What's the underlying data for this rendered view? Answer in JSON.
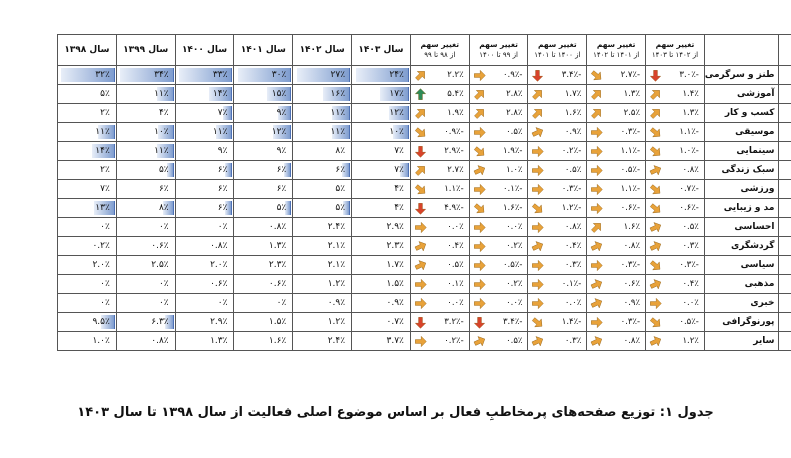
{
  "table": {
    "value_headers": [
      "سال ۱۳۹۸",
      "سال ۱۳۹۹",
      "سال ۱۴۰۰",
      "سال ۱۴۰۱",
      "سال ۱۴۰۲",
      "سال ۱۴۰۳"
    ],
    "change_headers": [
      {
        "l1": "تغییر سهم",
        "l2": "از ۹۸ تا ۹۹"
      },
      {
        "l1": "تغییر سهم",
        "l2": "از ۹۹ تا ۱۴۰۰"
      },
      {
        "l1": "تغییر سهم",
        "l2": "از ۱۴۰۰ تا ۱۴۰۱"
      },
      {
        "l1": "تغییر سهم",
        "l2": "از ۱۴۰۱ تا ۱۴۰۲"
      },
      {
        "l1": "تغییر سهم",
        "l2": "از ۱۴۰۲ تا ۱۴۰۳"
      }
    ],
    "rows": [
      {
        "label": "طنز و سرگرمی",
        "values": [
          "۳۲٪",
          "۳۴٪",
          "۳۳٪",
          "۳۰٪",
          "۲۷٪",
          "۲۴٪"
        ],
        "fills": [
          0.97,
          0.97,
          0.97,
          0.97,
          0.97,
          0.97
        ],
        "changes": [
          {
            "text": "۲.۲٪",
            "dir": "up"
          },
          {
            "text": "-۰.۹٪",
            "dir": "flat"
          },
          {
            "text": "-۳.۴٪",
            "dir": "down"
          },
          {
            "text": "-۲.۷٪",
            "dir": "downslight"
          },
          {
            "text": "-۳.۰٪",
            "dir": "down"
          }
        ]
      },
      {
        "label": "آموزشی",
        "values": [
          "۵٪",
          "۱۱٪",
          "۱۴٪",
          "۱۵٪",
          "۱۶٪",
          "۱۷٪"
        ],
        "fills": [
          0.0,
          0.3,
          0.42,
          0.45,
          0.49,
          0.52
        ],
        "changes": [
          {
            "text": "۵.۴٪",
            "dir": "upstrong"
          },
          {
            "text": "۲.۸٪",
            "dir": "up"
          },
          {
            "text": "۱.۷٪",
            "dir": "up"
          },
          {
            "text": "۱.۳٪",
            "dir": "up"
          },
          {
            "text": "۱.۴٪",
            "dir": "up"
          }
        ]
      },
      {
        "label": "کسب و کار",
        "values": [
          "۲٪",
          "۴٪",
          "۷٪",
          "۹٪",
          "۱۱٪",
          "۱۲٪"
        ],
        "fills": [
          0.0,
          0.0,
          0.18,
          0.25,
          0.32,
          0.36
        ],
        "changes": [
          {
            "text": "۱.۹٪",
            "dir": "up"
          },
          {
            "text": "۲.۸٪",
            "dir": "up"
          },
          {
            "text": "۱.۶٪",
            "dir": "up"
          },
          {
            "text": "۲.۵٪",
            "dir": "up"
          },
          {
            "text": "۱.۳٪",
            "dir": "up"
          }
        ]
      },
      {
        "label": "موسیقی",
        "values": [
          "۱۱٪",
          "۱۰٪",
          "۱۱٪",
          "۱۲٪",
          "۱۱٪",
          "۱۰٪"
        ],
        "fills": [
          0.3,
          0.28,
          0.3,
          0.34,
          0.32,
          0.28
        ],
        "changes": [
          {
            "text": "-۰.۹٪",
            "dir": "downslight"
          },
          {
            "text": "۰.۵٪",
            "dir": "flat"
          },
          {
            "text": "۰.۹٪",
            "dir": "upslight"
          },
          {
            "text": "-۰.۳٪",
            "dir": "flat"
          },
          {
            "text": "-۱.۱٪",
            "dir": "downslight"
          }
        ]
      },
      {
        "label": "سینمایی",
        "values": [
          "۱۴٪",
          "۱۱٪",
          "۹٪",
          "۹٪",
          "۸٪",
          "۷٪"
        ],
        "fills": [
          0.42,
          0.3,
          0.0,
          0.0,
          0.0,
          0.0
        ],
        "changes": [
          {
            "text": "-۲.۹٪",
            "dir": "down"
          },
          {
            "text": "-۱.۹٪",
            "dir": "downslight"
          },
          {
            "text": "-۰.۲٪",
            "dir": "flat"
          },
          {
            "text": "-۱.۱٪",
            "dir": "flat"
          },
          {
            "text": "-۱.۰٪",
            "dir": "downslight"
          }
        ]
      },
      {
        "label": "سبک زندگی",
        "values": [
          "۲٪",
          "۵٪",
          "۶٪",
          "۶٪",
          "۶٪",
          "۷٪"
        ],
        "fills": [
          0.0,
          0.12,
          0.14,
          0.14,
          0.14,
          0.16
        ],
        "changes": [
          {
            "text": "۲.۷٪",
            "dir": "up"
          },
          {
            "text": "۱.۰٪",
            "dir": "upslight"
          },
          {
            "text": "۰.۵٪",
            "dir": "flat"
          },
          {
            "text": "-۰.۵٪",
            "dir": "flat"
          },
          {
            "text": "۰.۸٪",
            "dir": "upslight"
          }
        ]
      },
      {
        "label": "ورزشی",
        "values": [
          "۷٪",
          "۶٪",
          "۶٪",
          "۶٪",
          "۵٪",
          "۴٪"
        ],
        "fills": [
          0.0,
          0.0,
          0.0,
          0.0,
          0.0,
          0.0
        ],
        "changes": [
          {
            "text": "-۱.۱٪",
            "dir": "downslight"
          },
          {
            "text": "-۰.۱٪",
            "dir": "flat"
          },
          {
            "text": "-۰.۳٪",
            "dir": "flat"
          },
          {
            "text": "-۱.۱٪",
            "dir": "flat"
          },
          {
            "text": "-۰.۷٪",
            "dir": "downslight"
          }
        ]
      },
      {
        "label": "مد و زیبایی",
        "values": [
          "۱۳٪",
          "۸٪",
          "۶٪",
          "۵٪",
          "۵٪",
          "۴٪"
        ],
        "fills": [
          0.38,
          0.2,
          0.14,
          0.12,
          0.12,
          0.0
        ],
        "changes": [
          {
            "text": "-۴.۹٪",
            "dir": "down"
          },
          {
            "text": "-۱.۶٪",
            "dir": "downslight"
          },
          {
            "text": "-۱.۲٪",
            "dir": "downslight"
          },
          {
            "text": "-۰.۶٪",
            "dir": "flat"
          },
          {
            "text": "-۰.۶٪",
            "dir": "downslight"
          }
        ]
      },
      {
        "label": "احساسی",
        "values": [
          "۰٪",
          "۰٪",
          "۰٪",
          "۰.۸٪",
          "۲.۴٪",
          "۲.۹٪"
        ],
        "fills": [
          0,
          0,
          0,
          0,
          0,
          0
        ],
        "changes": [
          {
            "text": "۰.۰٪",
            "dir": "flat"
          },
          {
            "text": "۰.۰٪",
            "dir": "flat"
          },
          {
            "text": "۰.۸٪",
            "dir": "flat"
          },
          {
            "text": "۱.۶٪",
            "dir": "up"
          },
          {
            "text": "۰.۵٪",
            "dir": "upslight"
          }
        ]
      },
      {
        "label": "گردشگری",
        "values": [
          "۰.۲٪",
          "۰.۶٪",
          "۰.۸٪",
          "۱.۳٪",
          "۲.۱٪",
          "۲.۳٪"
        ],
        "fills": [
          0,
          0,
          0,
          0,
          0,
          0
        ],
        "changes": [
          {
            "text": "۰.۴٪",
            "dir": "upslight"
          },
          {
            "text": "۰.۲٪",
            "dir": "flat"
          },
          {
            "text": "۰.۴٪",
            "dir": "upslight"
          },
          {
            "text": "۰.۸٪",
            "dir": "upslight"
          },
          {
            "text": "۰.۳٪",
            "dir": "upslight"
          }
        ]
      },
      {
        "label": "سیاسی",
        "values": [
          "۲.۰٪",
          "۲.۵٪",
          "۲.۰٪",
          "۲.۳٪",
          "۲.۱٪",
          "۱.۷٪"
        ],
        "fills": [
          0,
          0,
          0,
          0,
          0,
          0
        ],
        "changes": [
          {
            "text": "۰.۵٪",
            "dir": "upslight"
          },
          {
            "text": "-۰.۵٪",
            "dir": "flat"
          },
          {
            "text": "۰.۳٪",
            "dir": "flat"
          },
          {
            "text": "-۰.۳٪",
            "dir": "flat"
          },
          {
            "text": "-۰.۳٪",
            "dir": "downslight"
          }
        ]
      },
      {
        "label": "مذهبی",
        "values": [
          "۰٪",
          "۰٪",
          "۰.۶٪",
          "۰.۶٪",
          "۱.۲٪",
          "۱.۵٪"
        ],
        "fills": [
          0,
          0,
          0,
          0,
          0,
          0
        ],
        "changes": [
          {
            "text": "۰.۱٪",
            "dir": "flat"
          },
          {
            "text": "۰.۲٪",
            "dir": "flat"
          },
          {
            "text": "-۰.۱٪",
            "dir": "flat"
          },
          {
            "text": "۰.۶٪",
            "dir": "upslight"
          },
          {
            "text": "۰.۴٪",
            "dir": "upslight"
          }
        ]
      },
      {
        "label": "خبری",
        "values": [
          "۰٪",
          "۰٪",
          "۰٪",
          "۰٪",
          "۰.۹٪",
          "۰.۹٪"
        ],
        "fills": [
          0,
          0,
          0,
          0,
          0,
          0
        ],
        "changes": [
          {
            "text": "۰.۰٪",
            "dir": "flat"
          },
          {
            "text": "۰.۰٪",
            "dir": "flat"
          },
          {
            "text": "۰.۰٪",
            "dir": "flat"
          },
          {
            "text": "۰.۹٪",
            "dir": "upslight"
          },
          {
            "text": "۰.۰٪",
            "dir": "flat"
          }
        ]
      },
      {
        "label": "پورنوگرافی",
        "values": [
          "۹.۵٪",
          "۶.۳٪",
          "۲.۹٪",
          "۱.۵٪",
          "۱.۲٪",
          "۰.۷٪"
        ],
        "fills": [
          0.26,
          0.15,
          0,
          0,
          0,
          0
        ],
        "changes": [
          {
            "text": "-۳.۲٪",
            "dir": "down"
          },
          {
            "text": "-۳.۴٪",
            "dir": "down"
          },
          {
            "text": "-۱.۴٪",
            "dir": "downslight"
          },
          {
            "text": "-۰.۳٪",
            "dir": "flat"
          },
          {
            "text": "-۰.۵٪",
            "dir": "downslight"
          }
        ]
      },
      {
        "label": "سایر",
        "values": [
          "۱.۰٪",
          "۰.۸٪",
          "۱.۳٪",
          "۱.۶٪",
          "۲.۴٪",
          "۳.۷٪"
        ],
        "fills": [
          0,
          0,
          0,
          0,
          0,
          0
        ],
        "changes": [
          {
            "text": "-۰.۲٪",
            "dir": "flat"
          },
          {
            "text": "۰.۵٪",
            "dir": "upslight"
          },
          {
            "text": "۰.۳٪",
            "dir": "upslight"
          },
          {
            "text": "۰.۸٪",
            "dir": "upslight"
          },
          {
            "text": "۱.۲٪",
            "dir": "upslight"
          }
        ]
      }
    ]
  },
  "caption": "جدول ۱: توزیع صفحه‌های پرمخاطبِ فعال بر اساس موضوع اصلی فعالیت از سال ۱۳۹۸ تا سال ۱۴۰۳",
  "colors": {
    "up": "#e8a23a",
    "upstrong": "#2e8b57",
    "down": "#d8432b",
    "flat": "#e8a23a",
    "bar_start": "#e8eef8",
    "bar_end": "#7f9dcf"
  }
}
